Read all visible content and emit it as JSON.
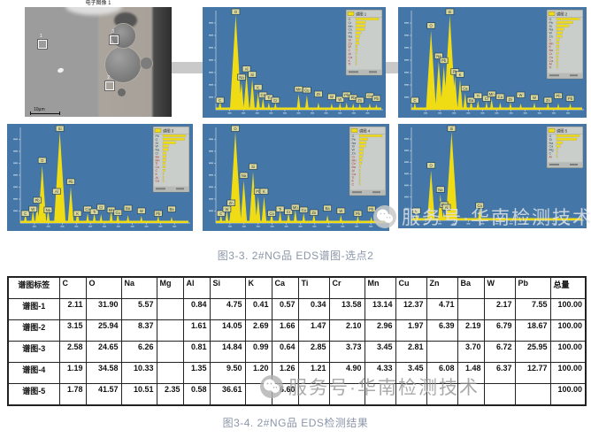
{
  "figure1": {
    "caption": "图3-3. 2#NG品  EDS谱图-选点2",
    "sem": {
      "title": "电子图像 1",
      "scale_bar": "10μm",
      "markers": [
        {
          "label": "1",
          "x": 9,
          "y": 30
        },
        {
          "label": "3",
          "x": 58,
          "y": 26
        },
        {
          "label": "2",
          "x": 55,
          "y": 68
        }
      ]
    }
  },
  "figure2": {
    "caption": "图3-4. 2#NG品  EDS检测结果"
  },
  "watermark": {
    "text": "服务号·华南检测技术",
    "icon": "wechat-icon"
  },
  "colors": {
    "spectrum_bg": "#4477a8",
    "peak_yellow": "#f0dc14",
    "axis": "#cdd6e0",
    "legend_bg": "#caceca",
    "caption_text": "#8b96a8"
  },
  "chart_data": [
    {
      "type": "area",
      "name": "谱图 1",
      "position": "top-middle",
      "axes": {
        "labels_legible": false,
        "x_unit": "keV",
        "x_frac_range": [
          0,
          1
        ]
      },
      "peaks": [
        [
          0.025,
          0.07,
          "C"
        ],
        [
          0.12,
          1.0,
          "O"
        ],
        [
          0.155,
          0.27,
          "Na"
        ],
        [
          0.185,
          0.36,
          "Al"
        ],
        [
          0.22,
          0.3,
          "Si"
        ],
        [
          0.255,
          0.16,
          "K"
        ],
        [
          0.285,
          0.1,
          "Ca"
        ],
        [
          0.32,
          0.05,
          "Ti"
        ],
        [
          0.36,
          0.05,
          "Cr"
        ],
        [
          0.5,
          0.14,
          "Mn"
        ],
        [
          0.55,
          0.13,
          "Cu"
        ],
        [
          0.62,
          0.05,
          "Zn"
        ],
        [
          0.7,
          0.04,
          "W"
        ],
        [
          0.75,
          0.05,
          "W"
        ],
        [
          0.79,
          0.05,
          "Pb"
        ],
        [
          0.83,
          0.04,
          "Pb"
        ],
        [
          0.87,
          0.04,
          "Zn"
        ],
        [
          0.93,
          0.04,
          "Cu"
        ],
        [
          0.97,
          0.03,
          "Pb"
        ]
      ],
      "legend": {
        "title": "谱图 1",
        "elements": [
          [
            "O",
            31.9
          ],
          [
            "Cr",
            13.58
          ],
          [
            "Mn",
            13.14
          ],
          [
            "Cu",
            12.37
          ],
          [
            "Pb",
            7.55
          ],
          [
            "Na",
            5.57
          ],
          [
            "Si",
            4.75
          ],
          [
            "Zn",
            4.71
          ],
          [
            "W",
            2.17
          ],
          [
            "C",
            2.11
          ],
          [
            "Al",
            0.84
          ],
          [
            "Ca",
            0.57
          ],
          [
            "K",
            0.41
          ],
          [
            "Ti",
            0.34
          ]
        ]
      }
    },
    {
      "type": "area",
      "name": "谱图 2",
      "position": "top-right",
      "axes": {
        "labels_legible": false,
        "x_unit": "keV",
        "x_frac_range": [
          0,
          1
        ]
      },
      "peaks": [
        [
          0.02,
          0.05,
          "C"
        ],
        [
          0.115,
          0.83,
          "O"
        ],
        [
          0.16,
          0.5,
          "Na"
        ],
        [
          0.19,
          0.45,
          "Pb"
        ],
        [
          0.225,
          1.0,
          "Si"
        ],
        [
          0.255,
          0.33,
          "Pb"
        ],
        [
          0.285,
          0.3,
          "K"
        ],
        [
          0.315,
          0.15,
          "Ca"
        ],
        [
          0.35,
          0.08,
          "Ba"
        ],
        [
          0.39,
          0.07,
          "Ti"
        ],
        [
          0.44,
          0.06,
          "Cr"
        ],
        [
          0.47,
          0.09,
          "Mn"
        ],
        [
          0.52,
          0.05,
          "Cu"
        ],
        [
          0.58,
          0.05,
          "Zn"
        ],
        [
          0.64,
          0.04,
          "W"
        ],
        [
          0.72,
          0.05,
          "W"
        ],
        [
          0.8,
          0.05,
          "Zn"
        ],
        [
          0.86,
          0.04,
          "Pb"
        ],
        [
          0.93,
          0.04,
          "Pb"
        ]
      ],
      "legend": {
        "title": "谱图 2",
        "elements": [
          [
            "O",
            25.94
          ],
          [
            "Pb",
            18.67
          ],
          [
            "Si",
            14.05
          ],
          [
            "Na",
            8.37
          ],
          [
            "W",
            6.79
          ],
          [
            "Zn",
            6.39
          ],
          [
            "C",
            3.15
          ],
          [
            "Mn",
            2.96
          ],
          [
            "K",
            2.69
          ],
          [
            "Ba",
            2.19
          ],
          [
            "Cr",
            2.1
          ],
          [
            "Cu",
            1.97
          ],
          [
            "Ca",
            1.66
          ],
          [
            "Al",
            1.61
          ],
          [
            "Ti",
            1.47
          ]
        ]
      }
    },
    {
      "type": "area",
      "name": "谱图 3",
      "position": "bottom-left",
      "axes": {
        "labels_legible": false,
        "x_unit": "keV",
        "x_frac_range": [
          0,
          1
        ]
      },
      "peaks": [
        [
          0.03,
          0.07,
          "C"
        ],
        [
          0.075,
          0.11,
          "W"
        ],
        [
          0.1,
          0.17,
          "Pb"
        ],
        [
          0.13,
          0.62,
          "O"
        ],
        [
          0.165,
          0.12,
          "Na"
        ],
        [
          0.215,
          0.27,
          "Al"
        ],
        [
          0.235,
          1.0,
          "Si"
        ],
        [
          0.3,
          0.38,
          "Pb"
        ],
        [
          0.34,
          0.12,
          "K"
        ],
        [
          0.4,
          0.08,
          "Ca"
        ],
        [
          0.44,
          0.08,
          "Ti"
        ],
        [
          0.48,
          0.07,
          "Cr"
        ],
        [
          0.54,
          0.11,
          "Mn"
        ],
        [
          0.58,
          0.08,
          "Cu"
        ],
        [
          0.64,
          0.06,
          "Ba"
        ],
        [
          0.72,
          0.05,
          "W"
        ],
        [
          0.82,
          0.05,
          "Pb"
        ],
        [
          0.9,
          0.04,
          "Ba"
        ]
      ],
      "legend": {
        "title": "谱图 3",
        "elements": [
          [
            "Pb",
            25.95
          ],
          [
            "O",
            24.65
          ],
          [
            "Si",
            14.84
          ],
          [
            "W",
            6.72
          ],
          [
            "Na",
            6.26
          ],
          [
            "Cr",
            3.73
          ],
          [
            "Ba",
            3.7
          ],
          [
            "Mn",
            3.45
          ],
          [
            "Ti",
            2.85
          ],
          [
            "Cu",
            2.81
          ],
          [
            "C",
            2.58
          ],
          [
            "K",
            0.99
          ],
          [
            "Al",
            0.81
          ],
          [
            "Ca",
            0.64
          ]
        ]
      }
    },
    {
      "type": "area",
      "name": "谱图 4",
      "position": "bottom-middle",
      "axes": {
        "labels_legible": false,
        "x_unit": "keV",
        "x_frac_range": [
          0,
          1
        ]
      },
      "peaks": [
        [
          0.03,
          0.07,
          "C"
        ],
        [
          0.065,
          0.11,
          "W"
        ],
        [
          0.09,
          0.14,
          "Zn"
        ],
        [
          0.115,
          1.0,
          "O"
        ],
        [
          0.165,
          0.45,
          "Na"
        ],
        [
          0.22,
          0.55,
          "Si"
        ],
        [
          0.25,
          0.27,
          "Pb"
        ],
        [
          0.285,
          0.27,
          "K"
        ],
        [
          0.33,
          0.1,
          "Ca"
        ],
        [
          0.38,
          0.1,
          "Ti"
        ],
        [
          0.43,
          0.09,
          "Cr"
        ],
        [
          0.47,
          0.12,
          "Mn"
        ],
        [
          0.52,
          0.08,
          "Cu"
        ],
        [
          0.58,
          0.08,
          "Zn"
        ],
        [
          0.66,
          0.06,
          "Ba"
        ],
        [
          0.74,
          0.06,
          "W"
        ],
        [
          0.84,
          0.05,
          "Pb"
        ],
        [
          0.92,
          0.04,
          "Pb"
        ]
      ],
      "legend": {
        "title": "谱图 4",
        "elements": [
          [
            "O",
            34.58
          ],
          [
            "Pb",
            12.77
          ],
          [
            "Na",
            10.33
          ],
          [
            "Si",
            9.5
          ],
          [
            "W",
            6.37
          ],
          [
            "Zn",
            6.08
          ],
          [
            "Cr",
            4.9
          ],
          [
            "Mn",
            4.33
          ],
          [
            "Cu",
            3.45
          ],
          [
            "Ba",
            1.48
          ],
          [
            "Al",
            1.35
          ],
          [
            "Ca",
            1.26
          ],
          [
            "Ti",
            1.21
          ],
          [
            "K",
            1.2
          ],
          [
            "C",
            1.19
          ]
        ]
      }
    },
    {
      "type": "area",
      "name": "谱图 5",
      "position": "bottom-right",
      "axes": {
        "labels_legible": false,
        "x_unit": "keV",
        "x_frac_range": [
          0,
          1
        ]
      },
      "peaks": [
        [
          0.03,
          0.05,
          "C"
        ],
        [
          0.115,
          0.55,
          "O"
        ],
        [
          0.17,
          0.27,
          "Na"
        ],
        [
          0.19,
          0.07,
          "Mg"
        ],
        [
          0.205,
          0.08,
          "Al"
        ],
        [
          0.235,
          1.0,
          "Si"
        ],
        [
          0.4,
          0.12,
          "Ca"
        ]
      ],
      "legend": {
        "title": "谱图 5",
        "elements": [
          [
            "O",
            41.57
          ],
          [
            "Si",
            36.61
          ],
          [
            "Na",
            10.51
          ],
          [
            "Ca",
            6.6
          ],
          [
            "Mg",
            2.35
          ],
          [
            "C",
            1.78
          ],
          [
            "Al",
            0.58
          ]
        ]
      }
    }
  ],
  "table": {
    "columns": [
      "谱图标签",
      "C",
      "O",
      "Na",
      "Mg",
      "Al",
      "Si",
      "K",
      "Ca",
      "Ti",
      "Cr",
      "Mn",
      "Cu",
      "Zn",
      "Ba",
      "W",
      "Pb",
      "总量"
    ],
    "rows": [
      [
        "谱图-1",
        "2.11",
        "31.90",
        "5.57",
        "",
        "0.84",
        "4.75",
        "0.41",
        "0.57",
        "0.34",
        "13.58",
        "13.14",
        "12.37",
        "4.71",
        "",
        "2.17",
        "7.55",
        "100.00"
      ],
      [
        "谱图-2",
        "3.15",
        "25.94",
        "8.37",
        "",
        "1.61",
        "14.05",
        "2.69",
        "1.66",
        "1.47",
        "2.10",
        "2.96",
        "1.97",
        "6.39",
        "2.19",
        "6.79",
        "18.67",
        "100.00"
      ],
      [
        "谱图-3",
        "2.58",
        "24.65",
        "6.26",
        "",
        "0.81",
        "14.84",
        "0.99",
        "0.64",
        "2.85",
        "3.73",
        "3.45",
        "2.81",
        "",
        "3.70",
        "6.72",
        "25.95",
        "100.00"
      ],
      [
        "谱图-4",
        "1.19",
        "34.58",
        "10.33",
        "",
        "1.35",
        "9.50",
        "1.20",
        "1.26",
        "1.21",
        "4.90",
        "4.33",
        "3.45",
        "6.08",
        "1.48",
        "6.37",
        "12.77",
        "100.00"
      ],
      [
        "谱图-5",
        "1.78",
        "41.57",
        "10.51",
        "2.35",
        "0.58",
        "36.61",
        "",
        "6.60",
        "",
        "",
        "",
        "",
        "",
        "",
        "",
        "",
        "100.00"
      ]
    ]
  }
}
